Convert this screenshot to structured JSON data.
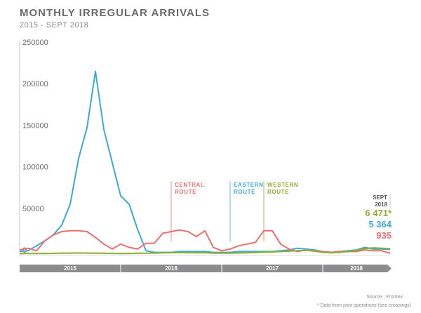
{
  "title": "MONTHLY IRREGULAR ARRIVALS",
  "subtitle": "2015 - SEPT 2018",
  "source": "Source : Frontex",
  "footnote": "* Data from joint operations (sea crossings)",
  "colors": {
    "central": "#e8706f",
    "eastern": "#3aabd6",
    "western": "#8fae2e",
    "axis": "#bdbdbd",
    "timeline": "#8c8c8c"
  },
  "chart_data": {
    "type": "line",
    "title": "MONTHLY IRREGULAR ARRIVALS",
    "subtitle": "2015 - SEPT 2018",
    "xlabel": "",
    "ylabel": "",
    "ylim": [
      0,
      250000
    ],
    "y_ticks": [
      0,
      50000,
      100000,
      150000,
      200000,
      250000
    ],
    "y_tick_labels": [
      "0",
      "50000",
      "100000",
      "150000",
      "200000",
      "250000"
    ],
    "x_start": "2015-01",
    "x_end": "2018-09",
    "years": [
      "2015",
      "2016",
      "2017",
      "2018"
    ],
    "series": [
      {
        "name": "CENTRAL ROUTE",
        "values": [
          5000,
          7000,
          4000,
          16000,
          23000,
          27000,
          28000,
          28000,
          27000,
          20000,
          12000,
          6000,
          12000,
          8000,
          6000,
          13000,
          13000,
          25000,
          27000,
          29000,
          27000,
          21000,
          28000,
          8000,
          4000,
          6000,
          10000,
          12000,
          14000,
          28000,
          28000,
          12000,
          6000,
          3000,
          5000,
          4000,
          3000,
          2000,
          3000,
          3000,
          3000,
          5000,
          4000,
          4000,
          935
        ]
      },
      {
        "name": "EASTERN ROUTE",
        "values": [
          3000,
          4000,
          10000,
          16000,
          23000,
          35000,
          60000,
          115000,
          152000,
          220000,
          150000,
          110000,
          70000,
          60000,
          30000,
          4000,
          2000,
          2000,
          2000,
          3000,
          3000,
          3000,
          3000,
          2000,
          2000,
          2000,
          3000,
          3000,
          3000,
          3000,
          3000,
          4000,
          5000,
          7000,
          6000,
          5000,
          3000,
          2000,
          3000,
          4000,
          5000,
          8000,
          6000,
          6000,
          5364
        ]
      },
      {
        "name": "WESTERN ROUTE",
        "values": [
          500,
          600,
          700,
          700,
          800,
          1000,
          1200,
          1300,
          1200,
          1100,
          900,
          800,
          700,
          700,
          900,
          1000,
          1200,
          1500,
          1600,
          1700,
          1600,
          1500,
          1400,
          1200,
          1000,
          1100,
          1300,
          1500,
          1800,
          2200,
          2500,
          3000,
          3500,
          4000,
          4500,
          3500,
          2000,
          1500,
          2000,
          3000,
          4500,
          6500,
          7500,
          7000,
          6471
        ]
      }
    ],
    "route_labels": [
      {
        "name": "CENTRAL ROUTE",
        "line1": "CENTRAL",
        "line2": "ROUTE",
        "date": "2016-07"
      },
      {
        "name": "EASTERN ROUTE",
        "line1": "EASTERN",
        "line2": "ROUTE",
        "date": "2017-02"
      },
      {
        "name": "WESTERN ROUTE",
        "line1": "WESTERN",
        "line2": "ROUTE",
        "date": "2017-06"
      }
    ],
    "latest": {
      "label_line1": "SEPT",
      "label_line2": "2018",
      "values": [
        {
          "name": "WESTERN ROUTE",
          "text": "6 471*"
        },
        {
          "name": "EASTERN ROUTE",
          "text": "5 364"
        },
        {
          "name": "CENTRAL ROUTE",
          "text": "935"
        }
      ]
    },
    "grid": false,
    "legend": "none"
  }
}
